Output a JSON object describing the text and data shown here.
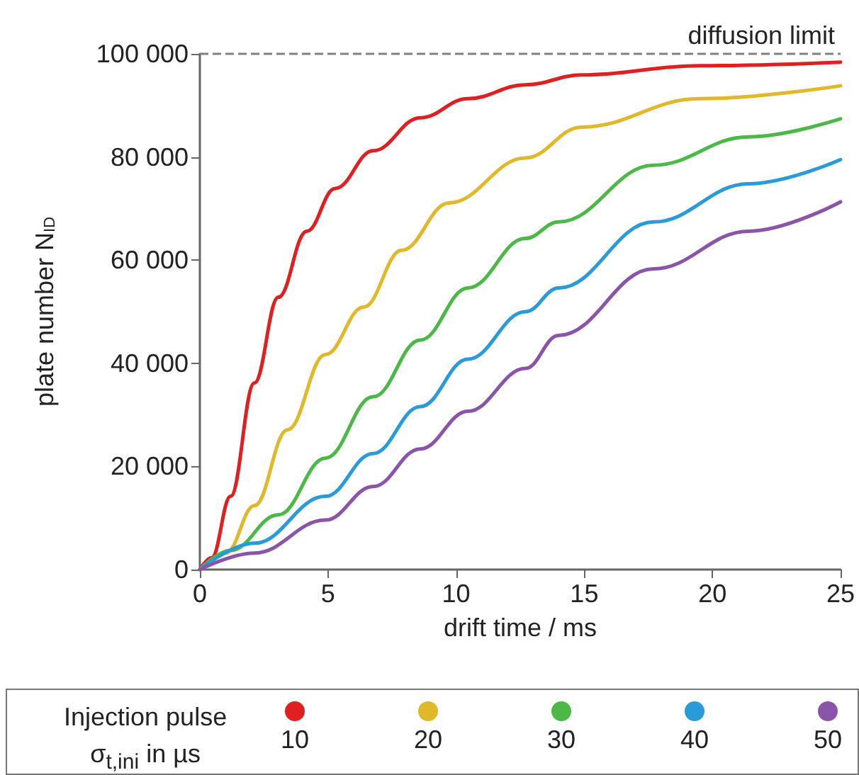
{
  "chart_data": {
    "type": "line",
    "xlabel": "drift time / ms",
    "ylabel": "plate number N$_{ID}$",
    "legend_title": "Injection pulse\nσ$_{t,ini}$ in µs",
    "xlim": [
      0,
      25
    ],
    "xticks": [
      0,
      5,
      10,
      15,
      20,
      25
    ],
    "ylim": [
      0,
      100000
    ],
    "yticks": [
      {
        "value": 0,
        "label": "0"
      },
      {
        "value": 20000,
        "label": "20 000"
      },
      {
        "value": 40000,
        "label": "40 000"
      },
      {
        "value": 60000,
        "label": "60 000"
      },
      {
        "value": 80000,
        "label": "80 000"
      },
      {
        "value": 100000,
        "label": "100 000"
      }
    ],
    "grid": false,
    "legend": "bottom",
    "marker": "none",
    "line_style": "solid",
    "ref_lines": [
      {
        "axis": "y",
        "value": 100000,
        "label": "diffusion limit",
        "color": "#808080",
        "line_style": "dashed"
      }
    ],
    "series": [
      {
        "name": "10",
        "color": "#e02020",
        "x": [
          0,
          0.46,
          1.2,
          2.13,
          3.06,
          4.17,
          5.28,
          6.76,
          8.6,
          10.46,
          12.7,
          14.9,
          19.5,
          25
        ],
        "values": [
          0,
          2300,
          14200,
          36200,
          52800,
          65600,
          73900,
          81200,
          87600,
          91300,
          94000,
          95900,
          97700,
          98400
        ]
      },
      {
        "name": "20",
        "color": "#e0b82a",
        "x": [
          0,
          1.02,
          2.13,
          3.42,
          4.9,
          6.39,
          7.87,
          9.72,
          12.7,
          14.9,
          19.5,
          25
        ],
        "values": [
          0,
          3200,
          12400,
          27100,
          41700,
          50900,
          61900,
          71100,
          79800,
          85800,
          91300,
          93800
        ]
      },
      {
        "name": "30",
        "color": "#4cb848",
        "x": [
          0,
          1.2,
          3.06,
          4.9,
          6.76,
          8.6,
          10.46,
          12.7,
          14.0,
          17.7,
          21.4,
          25
        ],
        "values": [
          0,
          3700,
          10600,
          21600,
          33500,
          44500,
          54600,
          64200,
          67400,
          78400,
          83900,
          87400
        ]
      },
      {
        "name": "40",
        "color": "#2a9ad8",
        "x": [
          0,
          2.13,
          4.9,
          6.76,
          8.6,
          10.46,
          12.7,
          14.0,
          17.7,
          21.4,
          25
        ],
        "values": [
          0,
          5100,
          14200,
          22500,
          31600,
          40800,
          50000,
          54600,
          67400,
          74800,
          79500
        ]
      },
      {
        "name": "50",
        "color": "#8a55a8",
        "x": [
          0,
          2.13,
          4.9,
          6.76,
          8.6,
          10.46,
          12.7,
          14.0,
          17.7,
          21.4,
          25
        ],
        "values": [
          0,
          3200,
          9600,
          16100,
          23400,
          30700,
          39000,
          45400,
          58300,
          65600,
          71300
        ]
      }
    ]
  }
}
